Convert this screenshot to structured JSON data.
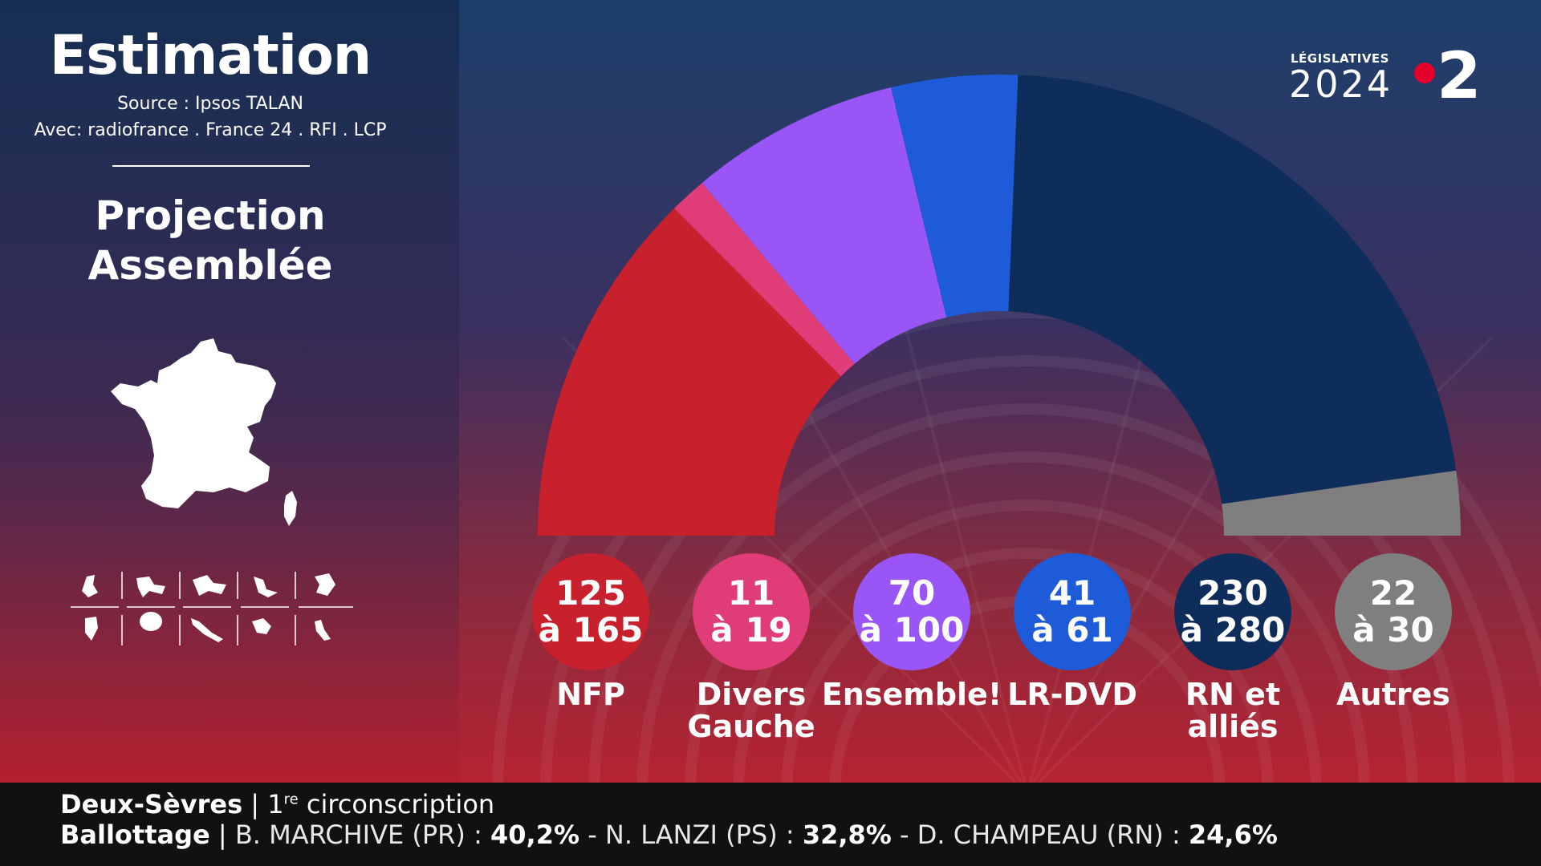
{
  "panel": {
    "title": "Estimation",
    "source": "Source : Ipsos TALAN",
    "partners": "Avec: radiofrance . France 24 . RFI . LCP",
    "subtitle_line1": "Projection",
    "subtitle_line2": "Assemblée"
  },
  "logo": {
    "event": "LÉGISLATIVES",
    "year": "2024",
    "channel": "2"
  },
  "chart_data": {
    "type": "pie",
    "title": "Projection Assemblée",
    "total_seats": 577,
    "series": [
      {
        "name": "NFP",
        "label_lines": [
          "NFP"
        ],
        "range_line1": "125",
        "range_line2": "à 165",
        "min": 125,
        "max": 165,
        "arc_value": 145,
        "color": "#c8202c"
      },
      {
        "name": "Divers Gauche",
        "label_lines": [
          "Divers",
          "Gauche"
        ],
        "range_line1": "11",
        "range_line2": "à 19",
        "min": 11,
        "max": 19,
        "arc_value": 15,
        "color": "#e03c78"
      },
      {
        "name": "Ensemble!",
        "label_lines": [
          "Ensemble!"
        ],
        "range_line1": "70",
        "range_line2": "à 100",
        "min": 70,
        "max": 100,
        "arc_value": 85,
        "color": "#9955f5"
      },
      {
        "name": "LR-DVD",
        "label_lines": [
          "LR-DVD"
        ],
        "range_line1": "41",
        "range_line2": "à 61",
        "min": 41,
        "max": 61,
        "arc_value": 51,
        "color": "#1d5bd9"
      },
      {
        "name": "RN et alliés",
        "label_lines": [
          "RN et",
          "alliés"
        ],
        "range_line1": "230",
        "range_line2": "à 280",
        "min": 230,
        "max": 280,
        "arc_value": 255,
        "color": "#0f2d5a"
      },
      {
        "name": "Autres",
        "label_lines": [
          "Autres"
        ],
        "range_line1": "22",
        "range_line2": "à 30",
        "min": 22,
        "max": 30,
        "arc_value": 26,
        "color": "#7f7f7f"
      }
    ]
  },
  "ticker": {
    "department": "Deux-Sèvres",
    "separator": "|",
    "circ_num": "1",
    "circ_sup": "re",
    "circ_text": " circonscription",
    "label": "Ballottage",
    "c1_name": "B. MARCHIVE (PR) : ",
    "c1_pct": "40,2%",
    "c2_name": " - N. LANZI (PS) : ",
    "c2_pct": "32,8%",
    "c3_name": " - D. CHAMPEAU (RN) : ",
    "c3_pct": "24,6%"
  },
  "colors": {
    "accent_red": "#e4002b",
    "ticker_bg": "#111111"
  }
}
